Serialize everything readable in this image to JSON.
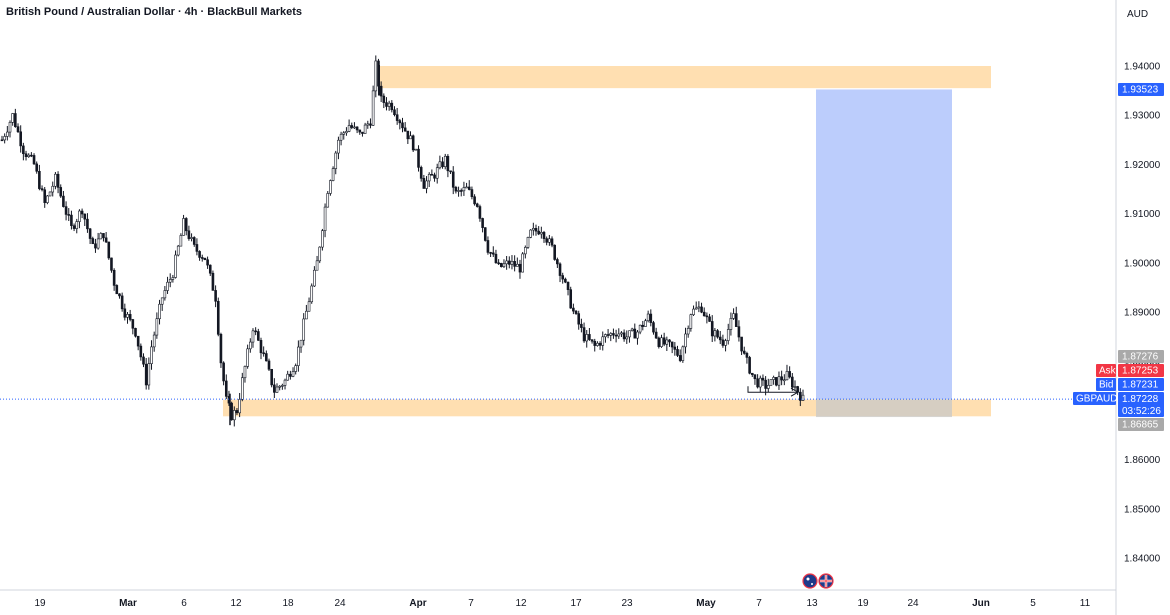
{
  "chart_data": {
    "type": "candlestick",
    "title": "British Pound / Australian Dollar · 4h · BlackBull Markets",
    "currency": "AUD",
    "ylim": [
      1.835,
      1.95
    ],
    "y_ticks": [
      "1.94000",
      "1.93000",
      "1.92000",
      "1.91000",
      "1.90000",
      "1.89000",
      "1.88000",
      "1.87000",
      "1.86000",
      "1.85000",
      "1.84000"
    ],
    "x_ticks": [
      {
        "label": "19",
        "bold": false
      },
      {
        "label": "Mar",
        "bold": true
      },
      {
        "label": "6",
        "bold": false
      },
      {
        "label": "12",
        "bold": false
      },
      {
        "label": "18",
        "bold": false
      },
      {
        "label": "24",
        "bold": false
      },
      {
        "label": "Apr",
        "bold": true
      },
      {
        "label": "7",
        "bold": false
      },
      {
        "label": "12",
        "bold": false
      },
      {
        "label": "17",
        "bold": false
      },
      {
        "label": "23",
        "bold": false
      },
      {
        "label": "May",
        "bold": true
      },
      {
        "label": "7",
        "bold": false
      },
      {
        "label": "13",
        "bold": false
      },
      {
        "label": "19",
        "bold": false
      },
      {
        "label": "24",
        "bold": false
      },
      {
        "label": "Jun",
        "bold": true
      },
      {
        "label": "5",
        "bold": false
      },
      {
        "label": "11",
        "bold": false
      }
    ],
    "price_path": [
      [
        0,
        1.925
      ],
      [
        2,
        1.93
      ],
      [
        4,
        1.923
      ],
      [
        6,
        1.92
      ],
      [
        8,
        1.912
      ],
      [
        10,
        1.917
      ],
      [
        13,
        1.907
      ],
      [
        15,
        1.911
      ],
      [
        17,
        1.903
      ],
      [
        19,
        1.906
      ],
      [
        21,
        1.896
      ],
      [
        23,
        1.89
      ],
      [
        25,
        1.886
      ],
      [
        27,
        1.876
      ],
      [
        28,
        1.883
      ],
      [
        30,
        1.893
      ],
      [
        32,
        1.898
      ],
      [
        34,
        1.908
      ],
      [
        36,
        1.903
      ],
      [
        38,
        1.901
      ],
      [
        40,
        1.893
      ],
      [
        41,
        1.88
      ],
      [
        42,
        1.872
      ],
      [
        43,
        1.869
      ],
      [
        44,
        1.87
      ],
      [
        45,
        1.876
      ],
      [
        47,
        1.887
      ],
      [
        49,
        1.881
      ],
      [
        51,
        1.874
      ],
      [
        53,
        1.876
      ],
      [
        55,
        1.88
      ],
      [
        57,
        1.89
      ],
      [
        59,
        1.9
      ],
      [
        61,
        1.915
      ],
      [
        63,
        1.925
      ],
      [
        65,
        1.928
      ],
      [
        67,
        1.926
      ],
      [
        69,
        1.929
      ],
      [
        70,
        1.94
      ],
      [
        71,
        1.933
      ],
      [
        73,
        1.932
      ],
      [
        75,
        1.928
      ],
      [
        77,
        1.924
      ],
      [
        79,
        1.916
      ],
      [
        81,
        1.918
      ],
      [
        83,
        1.921
      ],
      [
        85,
        1.914
      ],
      [
        87,
        1.915
      ],
      [
        89,
        1.912
      ],
      [
        91,
        1.903
      ],
      [
        93,
        1.899
      ],
      [
        95,
        1.9
      ],
      [
        97,
        1.899
      ],
      [
        99,
        1.906
      ],
      [
        101,
        1.907
      ],
      [
        103,
        1.903
      ],
      [
        105,
        1.897
      ],
      [
        107,
        1.89
      ],
      [
        109,
        1.885
      ],
      [
        111,
        1.883
      ],
      [
        113,
        1.885
      ],
      [
        115,
        1.886
      ],
      [
        117,
        1.885
      ],
      [
        119,
        1.886
      ],
      [
        121,
        1.889
      ],
      [
        123,
        1.884
      ],
      [
        125,
        1.883
      ],
      [
        127,
        1.881
      ],
      [
        129,
        1.89
      ],
      [
        131,
        1.891
      ],
      [
        133,
        1.886
      ],
      [
        135,
        1.884
      ],
      [
        137,
        1.889
      ],
      [
        139,
        1.881
      ],
      [
        141,
        1.876
      ],
      [
        143,
        1.875
      ],
      [
        145,
        1.876
      ],
      [
        147,
        1.877
      ],
      [
        149,
        1.874
      ],
      [
        150,
        1.8722
      ]
    ],
    "candle_x_range": [
      0,
      150
    ],
    "resistance_zone": {
      "from": 1.9355,
      "to": 1.94
    },
    "support_zone": {
      "from": 1.8688,
      "to": 1.8722
    },
    "target_box": {
      "from": 1.86865,
      "to": 1.93523
    },
    "price_labels": {
      "target_price": "1.93523",
      "high_label": "1.87276",
      "ask_label": "Ask",
      "ask_price": "1.87253",
      "bid_label": "Bid",
      "bid_price": "1.87231",
      "symbol": "GBPAUD",
      "last_price": "1.87228",
      "countdown": "03:52:26",
      "low_price": "1.86865"
    },
    "colors": {
      "zone": "#ffdfb1",
      "target": "#bccdfc",
      "stop": "#c8c8c8",
      "symbol_tag": "#2962ff",
      "ask_tag": "#f23645",
      "bid_tag": "#2962ff",
      "neutral_tag": "#a9a9a9",
      "price_line": "#2962ff"
    }
  }
}
